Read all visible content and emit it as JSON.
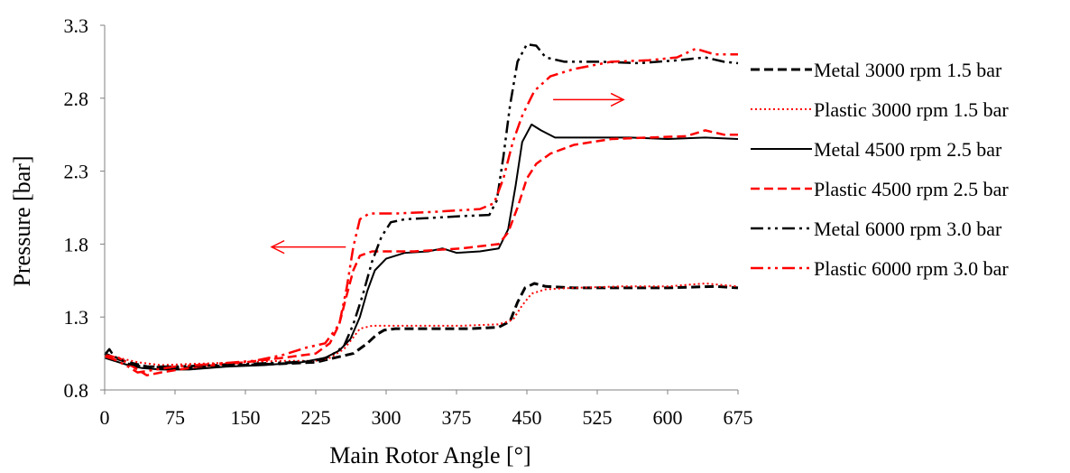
{
  "chart_data": {
    "type": "line",
    "title": "",
    "xlabel": "Main Rotor Angle [°]",
    "ylabel": "Pressure [bar]",
    "xlim": [
      0,
      675
    ],
    "ylim": [
      0.8,
      3.3
    ],
    "xticks": [
      "0",
      "75",
      "150",
      "225",
      "300",
      "375",
      "450",
      "525",
      "600",
      "675"
    ],
    "yticks": [
      "0.8",
      "1.3",
      "1.8",
      "2.3",
      "2.8",
      "3.3"
    ],
    "grid": false,
    "legend_position": "right",
    "series": [
      {
        "name": "Metal 3000 rpm 1.5 bar",
        "color": "#000000",
        "dash": "dashed",
        "width": 3,
        "points": [
          [
            0,
            1.05
          ],
          [
            10,
            1.02
          ],
          [
            25,
            0.99
          ],
          [
            45,
            0.96
          ],
          [
            75,
            0.95
          ],
          [
            110,
            0.96
          ],
          [
            150,
            0.97
          ],
          [
            190,
            0.98
          ],
          [
            225,
            0.99
          ],
          [
            245,
            1.02
          ],
          [
            265,
            1.05
          ],
          [
            280,
            1.12
          ],
          [
            290,
            1.18
          ],
          [
            298,
            1.21
          ],
          [
            310,
            1.22
          ],
          [
            350,
            1.22
          ],
          [
            390,
            1.22
          ],
          [
            420,
            1.23
          ],
          [
            432,
            1.27
          ],
          [
            440,
            1.4
          ],
          [
            448,
            1.5
          ],
          [
            458,
            1.53
          ],
          [
            470,
            1.51
          ],
          [
            500,
            1.5
          ],
          [
            550,
            1.5
          ],
          [
            600,
            1.5
          ],
          [
            650,
            1.51
          ],
          [
            675,
            1.5
          ]
        ]
      },
      {
        "name": "Plastic 3000 rpm 1.5 bar",
        "color": "#ff0000",
        "dash": "dotted",
        "width": 2,
        "points": [
          [
            0,
            1.04
          ],
          [
            15,
            1.02
          ],
          [
            35,
            0.99
          ],
          [
            60,
            0.97
          ],
          [
            100,
            0.98
          ],
          [
            150,
            0.99
          ],
          [
            190,
            1.0
          ],
          [
            225,
            1.0
          ],
          [
            240,
            1.02
          ],
          [
            255,
            1.08
          ],
          [
            265,
            1.16
          ],
          [
            272,
            1.22
          ],
          [
            285,
            1.24
          ],
          [
            320,
            1.24
          ],
          [
            380,
            1.24
          ],
          [
            420,
            1.25
          ],
          [
            435,
            1.28
          ],
          [
            445,
            1.38
          ],
          [
            455,
            1.46
          ],
          [
            470,
            1.49
          ],
          [
            500,
            1.5
          ],
          [
            550,
            1.51
          ],
          [
            600,
            1.51
          ],
          [
            640,
            1.53
          ],
          [
            675,
            1.51
          ]
        ]
      },
      {
        "name": "Metal 4500 rpm 2.5 bar",
        "color": "#000000",
        "dash": "solid",
        "width": 2,
        "points": [
          [
            0,
            1.02
          ],
          [
            10,
            1.0
          ],
          [
            25,
            0.97
          ],
          [
            40,
            0.95
          ],
          [
            60,
            0.94
          ],
          [
            90,
            0.94
          ],
          [
            130,
            0.96
          ],
          [
            170,
            0.97
          ],
          [
            210,
            0.99
          ],
          [
            235,
            1.02
          ],
          [
            250,
            1.07
          ],
          [
            262,
            1.15
          ],
          [
            272,
            1.3
          ],
          [
            280,
            1.48
          ],
          [
            288,
            1.62
          ],
          [
            300,
            1.7
          ],
          [
            320,
            1.74
          ],
          [
            345,
            1.75
          ],
          [
            360,
            1.77
          ],
          [
            375,
            1.74
          ],
          [
            400,
            1.75
          ],
          [
            420,
            1.77
          ],
          [
            430,
            1.9
          ],
          [
            438,
            2.2
          ],
          [
            445,
            2.5
          ],
          [
            455,
            2.62
          ],
          [
            465,
            2.58
          ],
          [
            480,
            2.53
          ],
          [
            520,
            2.53
          ],
          [
            560,
            2.53
          ],
          [
            600,
            2.52
          ],
          [
            640,
            2.53
          ],
          [
            675,
            2.52
          ]
        ]
      },
      {
        "name": "Plastic 4500 rpm 2.5 bar",
        "color": "#ff0000",
        "dash": "dashed",
        "width": 2.5,
        "points": [
          [
            0,
            1.04
          ],
          [
            15,
            1.02
          ],
          [
            30,
            0.96
          ],
          [
            45,
            0.9
          ],
          [
            60,
            0.92
          ],
          [
            100,
            0.96
          ],
          [
            150,
            0.99
          ],
          [
            190,
            1.02
          ],
          [
            225,
            1.05
          ],
          [
            240,
            1.12
          ],
          [
            250,
            1.25
          ],
          [
            258,
            1.45
          ],
          [
            265,
            1.62
          ],
          [
            272,
            1.72
          ],
          [
            285,
            1.75
          ],
          [
            330,
            1.75
          ],
          [
            380,
            1.77
          ],
          [
            420,
            1.8
          ],
          [
            430,
            1.88
          ],
          [
            440,
            2.05
          ],
          [
            450,
            2.25
          ],
          [
            460,
            2.35
          ],
          [
            475,
            2.42
          ],
          [
            500,
            2.48
          ],
          [
            540,
            2.52
          ],
          [
            580,
            2.53
          ],
          [
            620,
            2.54
          ],
          [
            640,
            2.58
          ],
          [
            660,
            2.55
          ],
          [
            675,
            2.55
          ]
        ]
      },
      {
        "name": "Metal 6000 rpm 3.0 bar",
        "color": "#000000",
        "dash": "dashdotdot",
        "width": 2.5,
        "points": [
          [
            0,
            1.04
          ],
          [
            5,
            1.08
          ],
          [
            10,
            1.03
          ],
          [
            25,
            0.98
          ],
          [
            40,
            0.96
          ],
          [
            75,
            0.96
          ],
          [
            120,
            0.97
          ],
          [
            160,
            0.98
          ],
          [
            200,
            0.99
          ],
          [
            225,
            1.0
          ],
          [
            240,
            1.03
          ],
          [
            255,
            1.1
          ],
          [
            265,
            1.25
          ],
          [
            275,
            1.45
          ],
          [
            285,
            1.68
          ],
          [
            295,
            1.85
          ],
          [
            305,
            1.95
          ],
          [
            320,
            1.97
          ],
          [
            350,
            1.98
          ],
          [
            375,
            1.99
          ],
          [
            410,
            2.0
          ],
          [
            418,
            2.1
          ],
          [
            425,
            2.4
          ],
          [
            432,
            2.75
          ],
          [
            440,
            3.05
          ],
          [
            450,
            3.17
          ],
          [
            460,
            3.16
          ],
          [
            470,
            3.08
          ],
          [
            490,
            3.05
          ],
          [
            530,
            3.05
          ],
          [
            570,
            3.04
          ],
          [
            610,
            3.06
          ],
          [
            640,
            3.08
          ],
          [
            660,
            3.05
          ],
          [
            675,
            3.04
          ]
        ]
      },
      {
        "name": "Plastic 6000 rpm 3.0 bar",
        "color": "#ff0000",
        "dash": "dashdotdot",
        "width": 2.5,
        "points": [
          [
            0,
            1.03
          ],
          [
            10,
            1.01
          ],
          [
            25,
            0.96
          ],
          [
            35,
            0.92
          ],
          [
            45,
            0.93
          ],
          [
            75,
            0.96
          ],
          [
            120,
            0.98
          ],
          [
            160,
            1.0
          ],
          [
            190,
            1.04
          ],
          [
            215,
            1.09
          ],
          [
            235,
            1.12
          ],
          [
            250,
            1.25
          ],
          [
            258,
            1.5
          ],
          [
            265,
            1.78
          ],
          [
            272,
            1.97
          ],
          [
            282,
            2.01
          ],
          [
            310,
            2.01
          ],
          [
            350,
            2.02
          ],
          [
            400,
            2.04
          ],
          [
            415,
            2.08
          ],
          [
            425,
            2.25
          ],
          [
            435,
            2.5
          ],
          [
            445,
            2.68
          ],
          [
            458,
            2.85
          ],
          [
            475,
            2.95
          ],
          [
            500,
            3.0
          ],
          [
            540,
            3.05
          ],
          [
            580,
            3.06
          ],
          [
            610,
            3.08
          ],
          [
            630,
            3.14
          ],
          [
            650,
            3.1
          ],
          [
            675,
            3.1
          ]
        ]
      }
    ],
    "annotations": [
      {
        "type": "arrow",
        "color": "#ff0000",
        "direction": "left",
        "from": [
          257,
          1.78
        ],
        "to": [
          178,
          1.78
        ]
      },
      {
        "type": "arrow",
        "color": "#ff0000",
        "direction": "right",
        "from": [
          478,
          2.79
        ],
        "to": [
          553,
          2.79
        ]
      }
    ]
  }
}
